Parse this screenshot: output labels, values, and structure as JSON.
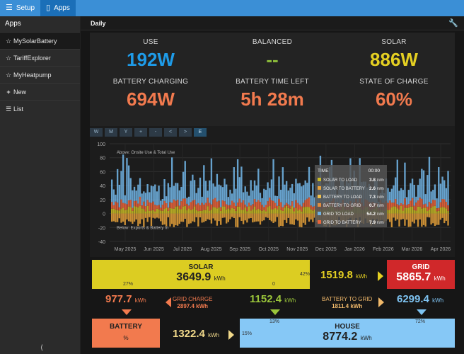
{
  "topnav": {
    "setup_label": "Setup",
    "apps_label": "Apps"
  },
  "sidebar": {
    "heading": "Apps",
    "items": [
      {
        "label": "MySolarBattery",
        "icon": "star-icon"
      },
      {
        "label": "TariffExplorer",
        "icon": "star-icon"
      },
      {
        "label": "MyHeatpump",
        "icon": "star-icon"
      },
      {
        "label": "New",
        "icon": "plus-icon"
      },
      {
        "label": "List",
        "icon": "list-icon"
      }
    ]
  },
  "main": {
    "title": "Daily"
  },
  "stats": {
    "use": {
      "label": "USE",
      "value": "192W",
      "color": "#1e9be8"
    },
    "balanced": {
      "label": "BALANCED",
      "value": "--",
      "color": "#8ab93a"
    },
    "solar": {
      "label": "SOLAR",
      "value": "886W",
      "color": "#e4cf22"
    },
    "battery_charging": {
      "label": "BATTERY CHARGING",
      "value": "694W",
      "color": "#f27a4e"
    },
    "battery_time_left": {
      "label": "BATTERY TIME LEFT",
      "value": "5h 28m",
      "color": "#f27a4e"
    },
    "state_of_charge": {
      "label": "STATE OF CHARGE",
      "value": "60%",
      "color": "#f27a4e"
    }
  },
  "zoom_buttons": [
    "W",
    "M",
    "Y",
    "+",
    "-",
    "<",
    ">",
    "E"
  ],
  "chart_data": {
    "type": "bar",
    "annotation_above": "Above: Onsite Use & Total Use",
    "annotation_below": "Below: Exports & Battery In",
    "y_ticks": [
      "100",
      "80",
      "60",
      "40",
      "20",
      "0",
      "-20",
      "-40"
    ],
    "ylim": [
      -40,
      100
    ],
    "x_ticks": [
      "May 2025",
      "Jun 2025",
      "Jul 2025",
      "Aug 2025",
      "Sep 2025",
      "Oct 2025",
      "Nov 2025",
      "Dec 2025",
      "Jan 2026",
      "Feb 2026",
      "Mar 2026",
      "Apr 2026"
    ],
    "series_colors": {
      "solar_to_load": "#c6b826",
      "solar_to_battery": "#e8a23a",
      "battery_to_load": "#f0c04a",
      "battery_to_grid": "#e28c3c",
      "grid_to_load": "#6fb0e0",
      "grid_to_battery": "#e8643c"
    },
    "tooltip": {
      "time_label": "TIME",
      "time_value": "00:00",
      "rows": [
        {
          "label": "SOLAR TO LOAD",
          "value": "3.8",
          "unit": "kWh",
          "color": "#c6b826"
        },
        {
          "label": "SOLAR TO BATTERY",
          "value": "2.6",
          "unit": "kWh",
          "color": "#e8a23a"
        },
        {
          "label": "BATTERY TO LOAD",
          "value": "7.3",
          "unit": "kWh",
          "color": "#f0c04a"
        },
        {
          "label": "BATTERY TO GRID",
          "value": "0.7",
          "unit": "kWh",
          "color": "#e28c3c"
        },
        {
          "label": "GRID TO LOAD",
          "value": "54.2",
          "unit": "kWh",
          "color": "#6fb0e0"
        },
        {
          "label": "GRID TO BATTERY",
          "value": "7.9",
          "unit": "kWh",
          "color": "#e8643c"
        }
      ]
    }
  },
  "flow": {
    "unit": "kWh",
    "solar": {
      "label": "SOLAR",
      "value": "3649.9",
      "pct_left": "27%",
      "pct_mid": "0",
      "pct_right": "42%",
      "color": "#dccd22"
    },
    "solar_to_grid": {
      "value": "1519.8",
      "color": "#e4cf22"
    },
    "grid": {
      "label": "GRID",
      "value": "5865.7",
      "color": "#d0282a"
    },
    "solar_to_battery": {
      "value": "977.7",
      "color": "#f27a4e"
    },
    "grid_charge": {
      "label": "GRID CHARGE",
      "value": "2897.4",
      "color": "#f27a4e"
    },
    "solar_to_house": {
      "value": "1152.4",
      "color": "#9ac53a"
    },
    "battery_to_grid": {
      "label": "BATTERY TO GRID",
      "value": "1811.4",
      "color": "#f0b86a"
    },
    "grid_to_house": {
      "value": "6299.4",
      "color": "#7ec3f2"
    },
    "battery": {
      "label": "BATTERY",
      "pct": "%",
      "color": "#f27a4e"
    },
    "battery_to_house": {
      "value": "1322.4",
      "color": "#f0d88a"
    },
    "house": {
      "label": "HOUSE",
      "value": "8774.2",
      "pct_left": "15%",
      "pct_top_left": "13%",
      "pct_top_right": "72%",
      "color": "#86c8f6"
    }
  }
}
